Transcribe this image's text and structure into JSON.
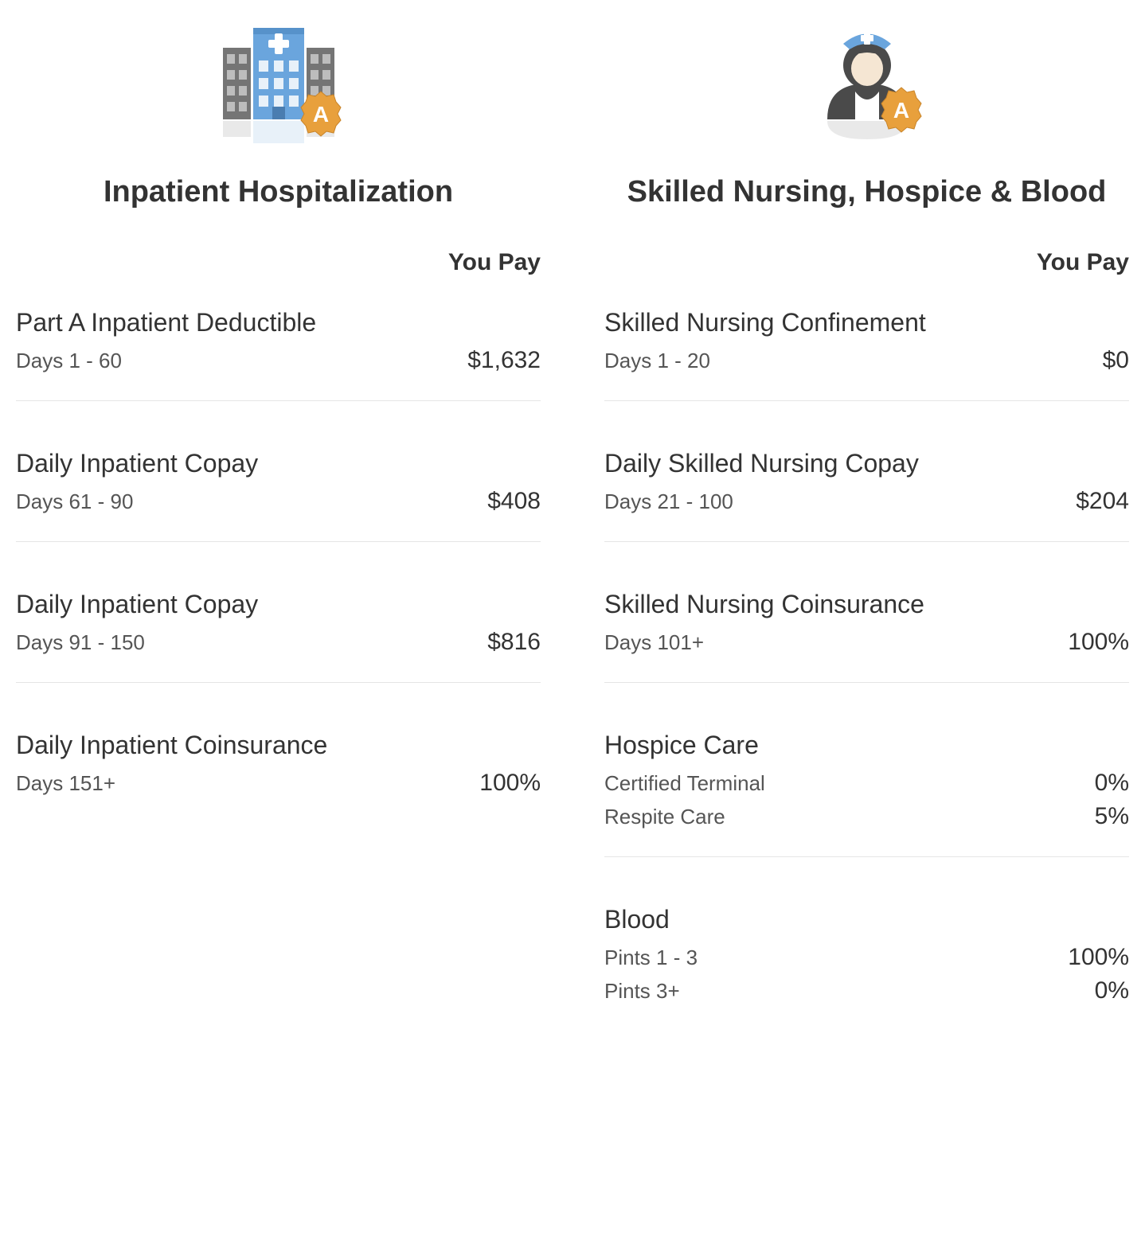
{
  "left": {
    "title": "Inpatient Hospitalization",
    "you_pay": "You Pay",
    "badge_letter": "A",
    "items": [
      {
        "title": "Part A Inpatient Deductible",
        "rows": [
          {
            "sub": "Days 1 - 60",
            "value": "$1,632"
          }
        ]
      },
      {
        "title": "Daily Inpatient Copay",
        "rows": [
          {
            "sub": "Days 61 - 90",
            "value": "$408"
          }
        ]
      },
      {
        "title": "Daily Inpatient Copay",
        "rows": [
          {
            "sub": "Days 91 - 150",
            "value": "$816"
          }
        ]
      },
      {
        "title": "Daily Inpatient Coinsurance",
        "rows": [
          {
            "sub": "Days 151+",
            "value": "100%"
          }
        ]
      }
    ]
  },
  "right": {
    "title": "Skilled Nursing, Hospice & Blood",
    "you_pay": "You Pay",
    "badge_letter": "A",
    "items": [
      {
        "title": "Skilled Nursing Confinement",
        "rows": [
          {
            "sub": "Days 1 - 20",
            "value": "$0"
          }
        ]
      },
      {
        "title": "Daily Skilled Nursing Copay",
        "rows": [
          {
            "sub": "Days 21 - 100",
            "value": "$204"
          }
        ]
      },
      {
        "title": "Skilled Nursing Coinsurance",
        "rows": [
          {
            "sub": "Days 101+",
            "value": "100%"
          }
        ]
      },
      {
        "title": "Hospice Care",
        "rows": [
          {
            "sub": "Certified Terminal",
            "value": "0%"
          },
          {
            "sub": "Respite Care",
            "value": "5%"
          }
        ]
      },
      {
        "title": "Blood",
        "rows": [
          {
            "sub": "Pints 1 - 3",
            "value": "100%"
          },
          {
            "sub": "Pints 3+",
            "value": "0%"
          }
        ]
      }
    ]
  },
  "colors": {
    "hospital_blue": "#6aa5dd",
    "hospital_dark": "#5a5a5a",
    "badge_orange": "#e8a03c",
    "nurse_cap": "#6aa5dd",
    "nurse_body": "#4a4a4a"
  }
}
